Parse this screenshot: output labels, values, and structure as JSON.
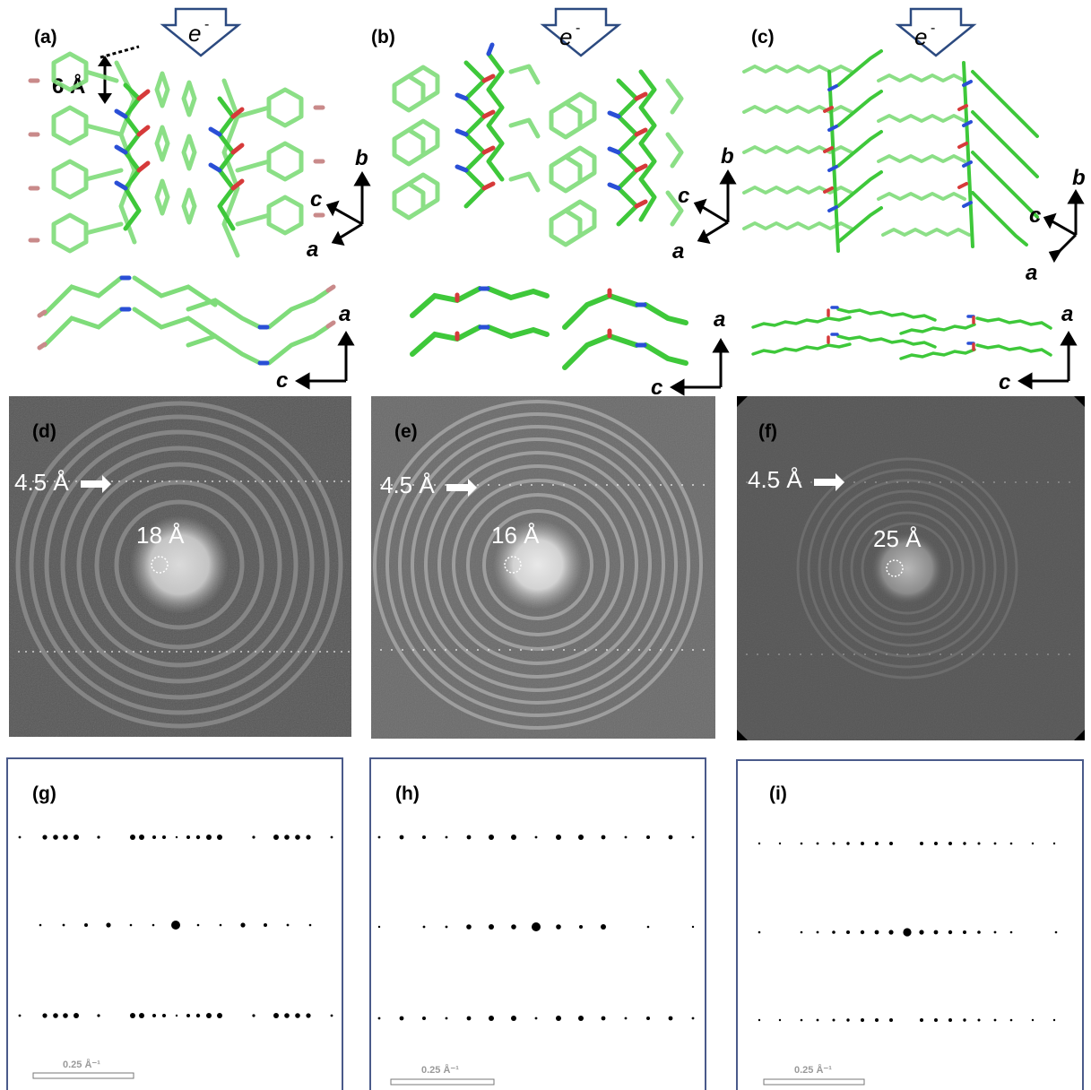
{
  "panel_labels": {
    "a": "(a)",
    "b": "(b)",
    "c": "(c)",
    "d": "(d)",
    "e": "(e)",
    "f": "(f)",
    "g": "(g)",
    "h": "(h)",
    "i": "(i)"
  },
  "beam_label": "e",
  "beam_label_sup": "-",
  "axes": {
    "a": "a",
    "b": "b",
    "c": "c"
  },
  "spacing_label": "6 Å",
  "fft_labels": {
    "layer": "4.5 Å",
    "d_center": "18 Å",
    "e_center": "16 Å",
    "f_center": "25 Å"
  },
  "scale_bar_label": "0.25 Å⁻¹",
  "colors": {
    "carbon": "#3ec83a",
    "carbon_light": "#7fdc7a",
    "oxygen": "#d63a3a",
    "nitrogen": "#2a4fd6",
    "halogen": "#c98a8a",
    "frame": "#4a5a8a",
    "arrow_outline": "#2c4a80"
  }
}
